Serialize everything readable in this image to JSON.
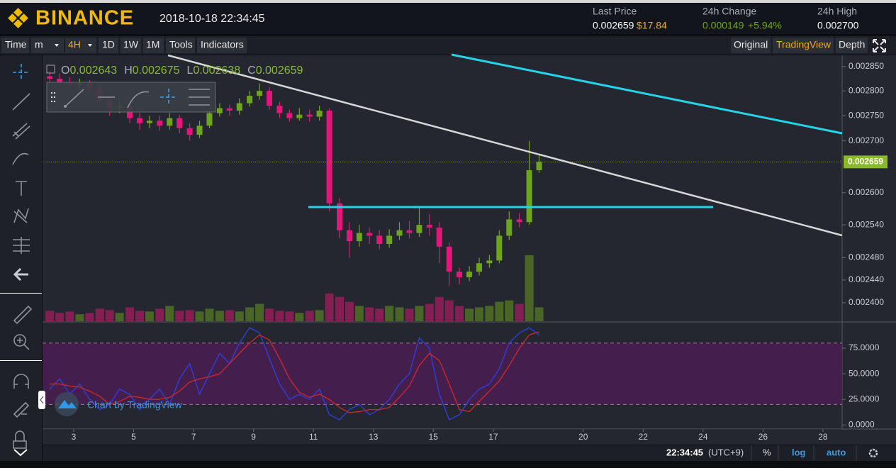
{
  "header": {
    "logo": "BINANCE",
    "datetime": "2018-10-18 22:34:45",
    "stats": [
      {
        "label": "Last Price",
        "value": "0.002659",
        "extra": "$17.84"
      },
      {
        "label": "24h Change",
        "value": "0.000149",
        "extra": "+5.94%"
      },
      {
        "label": "24h High",
        "value": "0.002700"
      }
    ]
  },
  "toolbar": {
    "left": [
      "Time",
      "m",
      "4H",
      "1D",
      "1W",
      "1M",
      "Tools",
      "Indicators"
    ],
    "right": [
      "Original",
      "TradingView",
      "Depth"
    ]
  },
  "legend": [
    {
      "key": "O",
      "value": "0.002643"
    },
    {
      "key": "H",
      "value": "0.002675"
    },
    {
      "key": "L",
      "value": "0.002638"
    },
    {
      "key": "C",
      "value": "0.002659"
    }
  ],
  "watermark": "Chart by TradingView",
  "footer": {
    "time": "22:34:45",
    "timezone": "(UTC+9)",
    "options": [
      "%",
      "log",
      "auto"
    ]
  },
  "chart_data": [
    {
      "type": "candlestick",
      "log_scale": true,
      "xlim": [
        1.96,
        28.64
      ],
      "ylim": [
        0.002368,
        0.002869
      ],
      "yticks": [
        {
          "value": 0.00285,
          "label": "0.002850"
        },
        {
          "value": 0.0028,
          "label": "0.002800"
        },
        {
          "value": 0.00275,
          "label": "0.002750"
        },
        {
          "value": 0.0027,
          "label": "0.002700"
        },
        {
          "value": 0.0026,
          "label": "0.002600"
        },
        {
          "value": 0.00254,
          "label": "0.002540"
        },
        {
          "value": 0.00248,
          "label": "0.002480"
        },
        {
          "value": 0.00244,
          "label": "0.002440"
        },
        {
          "value": 0.0024,
          "label": "0.002400"
        }
      ],
      "last_price": {
        "value": 0.002659,
        "label": "0.002659"
      },
      "up_color": "#6ea51f",
      "down_color": "#e3177a",
      "x": [
        2.2,
        2.53,
        2.87,
        3.2,
        3.53,
        3.87,
        4.2,
        4.53,
        4.87,
        5.2,
        5.53,
        5.87,
        6.2,
        6.53,
        6.87,
        7.2,
        7.53,
        7.87,
        8.2,
        8.53,
        8.87,
        9.2,
        9.53,
        9.87,
        10.2,
        10.53,
        10.87,
        11.2,
        11.53,
        11.87,
        12.2,
        12.53,
        12.87,
        13.2,
        13.53,
        13.87,
        14.2,
        14.53,
        14.87,
        15.2,
        15.53,
        15.87,
        16.2,
        16.53,
        16.87,
        17.2,
        17.53,
        17.87,
        18.2,
        18.53
      ],
      "open": [
        0.00283,
        0.002825,
        0.002818,
        0.002812,
        0.002815,
        0.002805,
        0.00278,
        0.002765,
        0.00277,
        0.002745,
        0.002735,
        0.00274,
        0.00273,
        0.002745,
        0.002725,
        0.002712,
        0.00273,
        0.002755,
        0.002765,
        0.00276,
        0.002775,
        0.00279,
        0.0028,
        0.00277,
        0.002755,
        0.002745,
        0.002752,
        0.002748,
        0.00276,
        0.00258,
        0.00253,
        0.00251,
        0.002525,
        0.00252,
        0.002505,
        0.00252,
        0.00253,
        0.002525,
        0.00254,
        0.002535,
        0.0025,
        0.002455,
        0.002445,
        0.002455,
        0.00247,
        0.002475,
        0.00252,
        0.00255,
        0.002545,
        0.002643
      ],
      "high": [
        0.00284,
        0.002835,
        0.002828,
        0.002825,
        0.002822,
        0.002812,
        0.00279,
        0.002782,
        0.002778,
        0.002755,
        0.00275,
        0.00275,
        0.002755,
        0.002752,
        0.002735,
        0.00274,
        0.002765,
        0.002775,
        0.002772,
        0.002785,
        0.0028,
        0.002815,
        0.002808,
        0.002778,
        0.002762,
        0.002765,
        0.002762,
        0.00277,
        0.002765,
        0.00259,
        0.002545,
        0.00254,
        0.002535,
        0.00253,
        0.002532,
        0.002545,
        0.002548,
        0.002575,
        0.00256,
        0.002545,
        0.002508,
        0.002462,
        0.002465,
        0.00248,
        0.002485,
        0.00253,
        0.002565,
        0.002562,
        0.0027,
        0.002675
      ],
      "low": [
        0.002815,
        0.002808,
        0.0028,
        0.002802,
        0.002795,
        0.00277,
        0.00275,
        0.002755,
        0.002735,
        0.002722,
        0.002725,
        0.00272,
        0.002722,
        0.002715,
        0.0027,
        0.002705,
        0.002725,
        0.002748,
        0.00275,
        0.002752,
        0.002768,
        0.002782,
        0.002762,
        0.002745,
        0.002738,
        0.00274,
        0.002738,
        0.00274,
        0.002565,
        0.002515,
        0.00248,
        0.0025,
        0.002505,
        0.002495,
        0.002498,
        0.002512,
        0.002515,
        0.002518,
        0.00252,
        0.00247,
        0.00243,
        0.002432,
        0.002438,
        0.002448,
        0.002462,
        0.00247,
        0.002512,
        0.002535,
        0.00254,
        0.002638
      ],
      "close": [
        0.002825,
        0.002818,
        0.002812,
        0.002815,
        0.002805,
        0.00278,
        0.002765,
        0.00277,
        0.002745,
        0.002735,
        0.00274,
        0.00273,
        0.002745,
        0.002725,
        0.002712,
        0.00273,
        0.002755,
        0.002765,
        0.00276,
        0.002775,
        0.00279,
        0.0028,
        0.00277,
        0.002755,
        0.002745,
        0.002752,
        0.002748,
        0.00276,
        0.00258,
        0.00253,
        0.00251,
        0.002525,
        0.00252,
        0.002505,
        0.00252,
        0.00253,
        0.002525,
        0.00254,
        0.002535,
        0.0025,
        0.002455,
        0.002445,
        0.002455,
        0.00247,
        0.002475,
        0.00252,
        0.00255,
        0.002545,
        0.002643,
        0.002659
      ],
      "volume": [
        15,
        12,
        14,
        10,
        12,
        18,
        16,
        12,
        20,
        15,
        14,
        18,
        22,
        15,
        16,
        14,
        18,
        15,
        16,
        14,
        20,
        25,
        18,
        15,
        14,
        12,
        15,
        16,
        40,
        35,
        28,
        22,
        20,
        18,
        22,
        20,
        18,
        22,
        25,
        35,
        30,
        22,
        18,
        20,
        22,
        28,
        30,
        25,
        95,
        20
      ]
    },
    {
      "type": "line",
      "xlim": [
        1.96,
        28.64
      ],
      "ylim": [
        -4,
        100
      ],
      "yticks": [
        {
          "value": 75,
          "label": "75.0000"
        },
        {
          "value": 50,
          "label": "50.0000"
        },
        {
          "value": 25,
          "label": "25.0000"
        },
        {
          "value": 0,
          "label": "0.0000"
        }
      ],
      "xticks": [
        3,
        5,
        7,
        9,
        11,
        13,
        15,
        17,
        20,
        22,
        24,
        26,
        28
      ],
      "bands": [
        20,
        80
      ],
      "band_color": "#4a1f52",
      "x": [
        2.2,
        2.53,
        2.87,
        3.2,
        3.53,
        3.87,
        4.2,
        4.53,
        4.87,
        5.2,
        5.53,
        5.87,
        6.2,
        6.53,
        6.87,
        7.2,
        7.53,
        7.87,
        8.2,
        8.53,
        8.87,
        9.2,
        9.53,
        9.87,
        10.2,
        10.53,
        10.87,
        11.2,
        11.53,
        11.87,
        12.2,
        12.53,
        12.87,
        13.2,
        13.53,
        13.87,
        14.2,
        14.53,
        14.87,
        15.2,
        15.53,
        15.87,
        16.2,
        16.53,
        16.87,
        17.2,
        17.53,
        17.87,
        18.2,
        18.53
      ],
      "series": [
        {
          "color": "#2e3fd8",
          "values": [
            35,
            45,
            30,
            40,
            25,
            15,
            20,
            35,
            30,
            15,
            25,
            35,
            20,
            45,
            60,
            30,
            50,
            70,
            60,
            80,
            95,
            90,
            65,
            40,
            25,
            30,
            25,
            35,
            10,
            5,
            15,
            20,
            10,
            15,
            25,
            40,
            50,
            85,
            75,
            30,
            5,
            10,
            25,
            35,
            40,
            55,
            80,
            90,
            95,
            88
          ]
        },
        {
          "color": "#c8282c",
          "values": [
            40,
            40,
            38,
            37,
            33,
            28,
            20,
            23,
            28,
            27,
            25,
            25,
            27,
            33,
            42,
            45,
            47,
            50,
            60,
            70,
            80,
            88,
            83,
            65,
            45,
            32,
            27,
            30,
            25,
            17,
            12,
            13,
            15,
            15,
            17,
            27,
            38,
            58,
            70,
            63,
            40,
            15,
            13,
            23,
            33,
            43,
            58,
            75,
            88,
            91
          ]
        }
      ]
    }
  ]
}
